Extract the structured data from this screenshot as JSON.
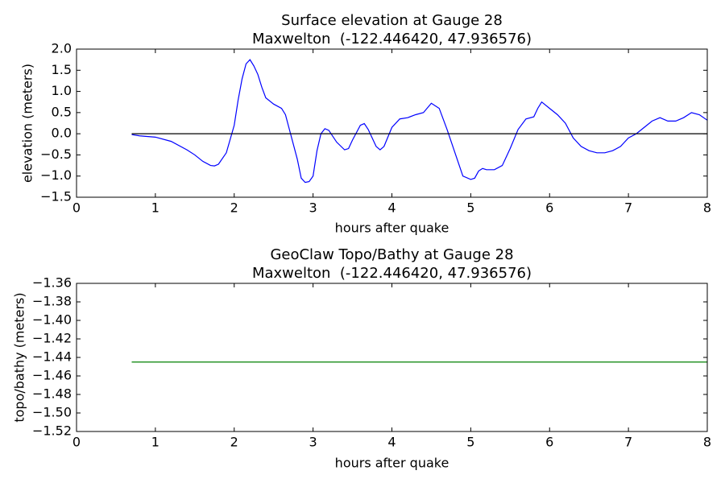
{
  "chart_data": [
    {
      "type": "line",
      "title": "Surface elevation at Gauge 28",
      "subtitle": "Maxwelton  (-122.446420, 47.936576)",
      "xlabel": "hours after quake",
      "ylabel": "elevation (meters)",
      "xlim": [
        0,
        8
      ],
      "xticks": [
        0,
        1,
        2,
        3,
        4,
        5,
        6,
        7,
        8
      ],
      "ylim": [
        -1.5,
        2.0
      ],
      "yticks": [
        {
          "value": -1.5,
          "label": "−1.5"
        },
        {
          "value": -1.0,
          "label": "−1.0"
        },
        {
          "value": -0.5,
          "label": "−0.5"
        },
        {
          "value": 0,
          "label": "0.0"
        },
        {
          "value": 0.5,
          "label": "0.5"
        },
        {
          "value": 1.0,
          "label": "1.0"
        },
        {
          "value": 1.5,
          "label": "1.5"
        },
        {
          "value": 2.0,
          "label": "2.0"
        }
      ],
      "series": [
        {
          "color": "#0000ff",
          "x": [
            0.7,
            0.8,
            1.0,
            1.2,
            1.4,
            1.5,
            1.6,
            1.7,
            1.75,
            1.8,
            1.9,
            2.0,
            2.05,
            2.1,
            2.15,
            2.2,
            2.25,
            2.3,
            2.35,
            2.4,
            2.5,
            2.6,
            2.65,
            2.7,
            2.8,
            2.85,
            2.9,
            2.95,
            3.0,
            3.05,
            3.1,
            3.15,
            3.2,
            3.3,
            3.4,
            3.45,
            3.5,
            3.6,
            3.65,
            3.7,
            3.8,
            3.85,
            3.9,
            4.0,
            4.1,
            4.2,
            4.3,
            4.4,
            4.5,
            4.6,
            4.7,
            4.8,
            4.9,
            5.0,
            5.05,
            5.1,
            5.15,
            5.2,
            5.3,
            5.4,
            5.5,
            5.6,
            5.7,
            5.8,
            5.85,
            5.9,
            6.0,
            6.1,
            6.2,
            6.3,
            6.4,
            6.5,
            6.6,
            6.7,
            6.8,
            6.9,
            7.0,
            7.1,
            7.2,
            7.3,
            7.4,
            7.5,
            7.6,
            7.7,
            7.8,
            7.9,
            8.0
          ],
          "values": [
            -0.02,
            -0.05,
            -0.08,
            -0.18,
            -0.38,
            -0.5,
            -0.65,
            -0.75,
            -0.76,
            -0.72,
            -0.45,
            0.2,
            0.8,
            1.3,
            1.65,
            1.75,
            1.6,
            1.4,
            1.1,
            0.85,
            0.7,
            0.6,
            0.45,
            0.1,
            -0.6,
            -1.05,
            -1.15,
            -1.13,
            -1.0,
            -0.4,
            0.0,
            0.12,
            0.08,
            -0.2,
            -0.38,
            -0.35,
            -0.15,
            0.2,
            0.24,
            0.1,
            -0.3,
            -0.38,
            -0.3,
            0.15,
            0.35,
            0.38,
            0.45,
            0.5,
            0.72,
            0.6,
            0.1,
            -0.45,
            -1.0,
            -1.08,
            -1.05,
            -0.88,
            -0.82,
            -0.85,
            -0.85,
            -0.75,
            -0.35,
            0.1,
            0.35,
            0.4,
            0.6,
            0.75,
            0.6,
            0.45,
            0.25,
            -0.1,
            -0.3,
            -0.4,
            -0.45,
            -0.45,
            -0.4,
            -0.3,
            -0.1,
            0.0,
            0.15,
            0.3,
            0.38,
            0.3,
            0.3,
            0.38,
            0.5,
            0.45,
            0.32
          ]
        },
        {
          "color": "#000000",
          "x": [
            0.7,
            8.0
          ],
          "values": [
            0,
            0
          ]
        }
      ]
    },
    {
      "type": "line",
      "title": "GeoClaw Topo/Bathy at Gauge 28",
      "subtitle": "Maxwelton  (-122.446420, 47.936576)",
      "xlabel": "hours after quake",
      "ylabel": "topo/bathy (meters)",
      "xlim": [
        0,
        8
      ],
      "xticks": [
        0,
        1,
        2,
        3,
        4,
        5,
        6,
        7,
        8
      ],
      "ylim": [
        -1.52,
        -1.36
      ],
      "yticks": [
        {
          "value": -1.52,
          "label": "−1.52"
        },
        {
          "value": -1.5,
          "label": "−1.50"
        },
        {
          "value": -1.48,
          "label": "−1.48"
        },
        {
          "value": -1.46,
          "label": "−1.46"
        },
        {
          "value": -1.44,
          "label": "−1.44"
        },
        {
          "value": -1.42,
          "label": "−1.42"
        },
        {
          "value": -1.4,
          "label": "−1.40"
        },
        {
          "value": -1.38,
          "label": "−1.38"
        },
        {
          "value": -1.36,
          "label": "−1.36"
        }
      ],
      "series": [
        {
          "color": "#008000",
          "x": [
            0.7,
            8.0
          ],
          "values": [
            -1.445,
            -1.445
          ]
        }
      ]
    }
  ]
}
